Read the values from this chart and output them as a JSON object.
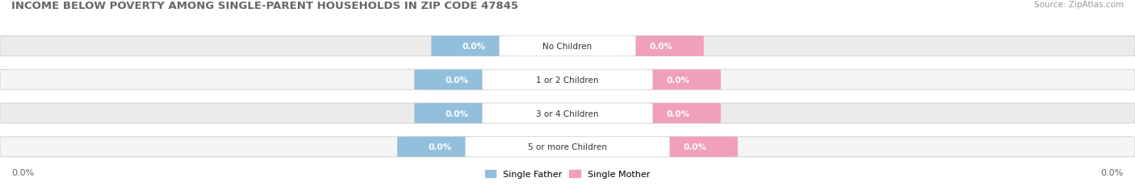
{
  "title": "INCOME BELOW POVERTY AMONG SINGLE-PARENT HOUSEHOLDS IN ZIP CODE 47845",
  "source": "Source: ZipAtlas.com",
  "categories": [
    "No Children",
    "1 or 2 Children",
    "3 or 4 Children",
    "5 or more Children"
  ],
  "father_values": [
    0.0,
    0.0,
    0.0,
    0.0
  ],
  "mother_values": [
    0.0,
    0.0,
    0.0,
    0.0
  ],
  "father_color": "#92bfdb",
  "mother_color": "#f0a0b8",
  "bar_bg_color": "#ebebeb",
  "bar_bg_color2": "#f5f5f5",
  "title_fontsize": 9.5,
  "source_fontsize": 7.5,
  "label_fontsize": 7.5,
  "tick_fontsize": 8,
  "legend_fontsize": 8,
  "figure_bg": "#ffffff",
  "left_tick_label": "0.0%",
  "right_tick_label": "0.0%"
}
